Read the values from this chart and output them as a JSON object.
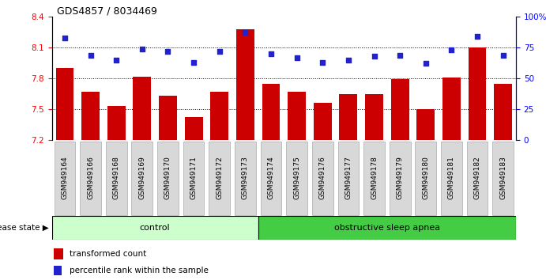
{
  "title": "GDS4857 / 8034469",
  "samples": [
    "GSM949164",
    "GSM949166",
    "GSM949168",
    "GSM949169",
    "GSM949170",
    "GSM949171",
    "GSM949172",
    "GSM949173",
    "GSM949174",
    "GSM949175",
    "GSM949176",
    "GSM949177",
    "GSM949178",
    "GSM949179",
    "GSM949180",
    "GSM949181",
    "GSM949182",
    "GSM949183"
  ],
  "red_values": [
    7.9,
    7.67,
    7.53,
    7.82,
    7.63,
    7.42,
    7.67,
    8.28,
    7.75,
    7.67,
    7.56,
    7.65,
    7.65,
    7.79,
    7.5,
    7.81,
    8.1,
    7.75
  ],
  "blue_values": [
    83,
    69,
    65,
    74,
    72,
    63,
    72,
    87,
    70,
    67,
    63,
    65,
    68,
    69,
    62,
    73,
    84,
    69
  ],
  "ylim_left": [
    7.2,
    8.4
  ],
  "ylim_right": [
    0,
    100
  ],
  "yticks_left": [
    7.2,
    7.5,
    7.8,
    8.1,
    8.4
  ],
  "yticks_right": [
    0,
    25,
    50,
    75,
    100
  ],
  "ytick_labels_right": [
    "0",
    "25",
    "50",
    "75",
    "100%"
  ],
  "grid_lines": [
    7.5,
    7.8,
    8.1
  ],
  "n_control": 8,
  "control_label": "control",
  "apnea_label": "obstructive sleep apnea",
  "disease_state_label": "disease state",
  "legend_red": "transformed count",
  "legend_blue": "percentile rank within the sample",
  "bar_color": "#cc0000",
  "blue_color": "#2222cc",
  "control_bg": "#ccffcc",
  "apnea_bg": "#44cc44",
  "tick_bg": "#d8d8d8",
  "bar_width": 0.7
}
